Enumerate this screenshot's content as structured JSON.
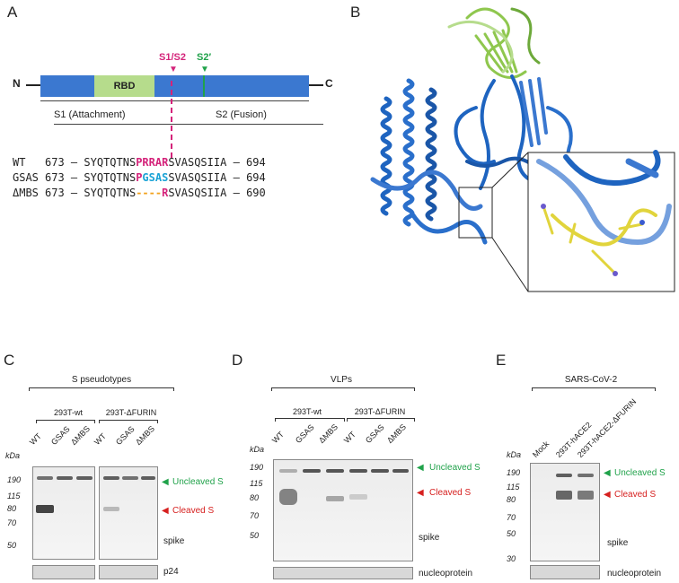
{
  "panels": {
    "A": "A",
    "B": "B",
    "C": "C",
    "D": "D",
    "E": "E"
  },
  "panelA": {
    "n_term": "N",
    "c_term": "C",
    "rbd": "RBD",
    "s1s2": "S1/S2",
    "s2prime": "S2′",
    "s1": "S1 (Attachment)",
    "s2": "S2 (Fusion)",
    "seqs": [
      {
        "name": "WT",
        "start": "673",
        "pre": "SYQTQTNS",
        "mid": "PRRAR",
        "post": "SVASQSIIA",
        "end": "694"
      },
      {
        "name": "GSAS",
        "start": "673",
        "pre": "SYQTQTNS",
        "mid_p": "P",
        "mid_g": "GSAS",
        "post": "SVASQSIIA",
        "end": "694"
      },
      {
        "name": "ΔMBS",
        "start": "673",
        "pre": "SYQTQTNS",
        "mid_dash": "----",
        "mid_r": "R",
        "post": "SVASQSIIA",
        "end": "690"
      }
    ],
    "dash": "–"
  },
  "panelC": {
    "title": "S pseudotypes",
    "group1": "293T-wt",
    "group2": "293T-ΔFURIN",
    "lanes1": [
      "WT",
      "GSAS",
      "ΔMBS"
    ],
    "lanes2": [
      "WT",
      "GSAS",
      "ΔMBS"
    ],
    "kda": "kDa",
    "markers": [
      "190",
      "115",
      "80",
      "70",
      "50"
    ],
    "blot_label": "spike",
    "loading_label": "p24",
    "uncleaved": "Uncleaved S",
    "cleaved": "Cleaved S"
  },
  "panelD": {
    "title": "VLPs",
    "group1": "293T-wt",
    "group2": "293T-ΔFURIN",
    "lanes1": [
      "WT",
      "GSAS",
      "ΔMBS"
    ],
    "lanes2": [
      "WT",
      "GSAS",
      "ΔMBS"
    ],
    "kda": "kDa",
    "markers": [
      "190",
      "115",
      "80",
      "70",
      "50"
    ],
    "blot_label": "spike",
    "loading_label": "nucleoprotein",
    "uncleaved": "Uncleaved S",
    "cleaved": "Cleaved S"
  },
  "panelE": {
    "title": "SARS-CoV-2",
    "lanes": [
      "Mock",
      "293T-hACE2",
      "293T-hACE2-ΔFURIN"
    ],
    "kda": "kDa",
    "markers": [
      "190",
      "115",
      "80",
      "70",
      "50",
      "30"
    ],
    "blot_label": "spike",
    "loading_label": "nucleoprotein",
    "uncleaved": "Uncleaved S",
    "cleaved": "Cleaved S"
  },
  "colors": {
    "domain_blue": "#3b78d0",
    "rbd_green": "#b6dc8c",
    "magenta": "#d4237a",
    "green": "#20a24a",
    "red": "#d6201f",
    "cyan": "#1aa3d6",
    "orange": "#f2a21c"
  }
}
